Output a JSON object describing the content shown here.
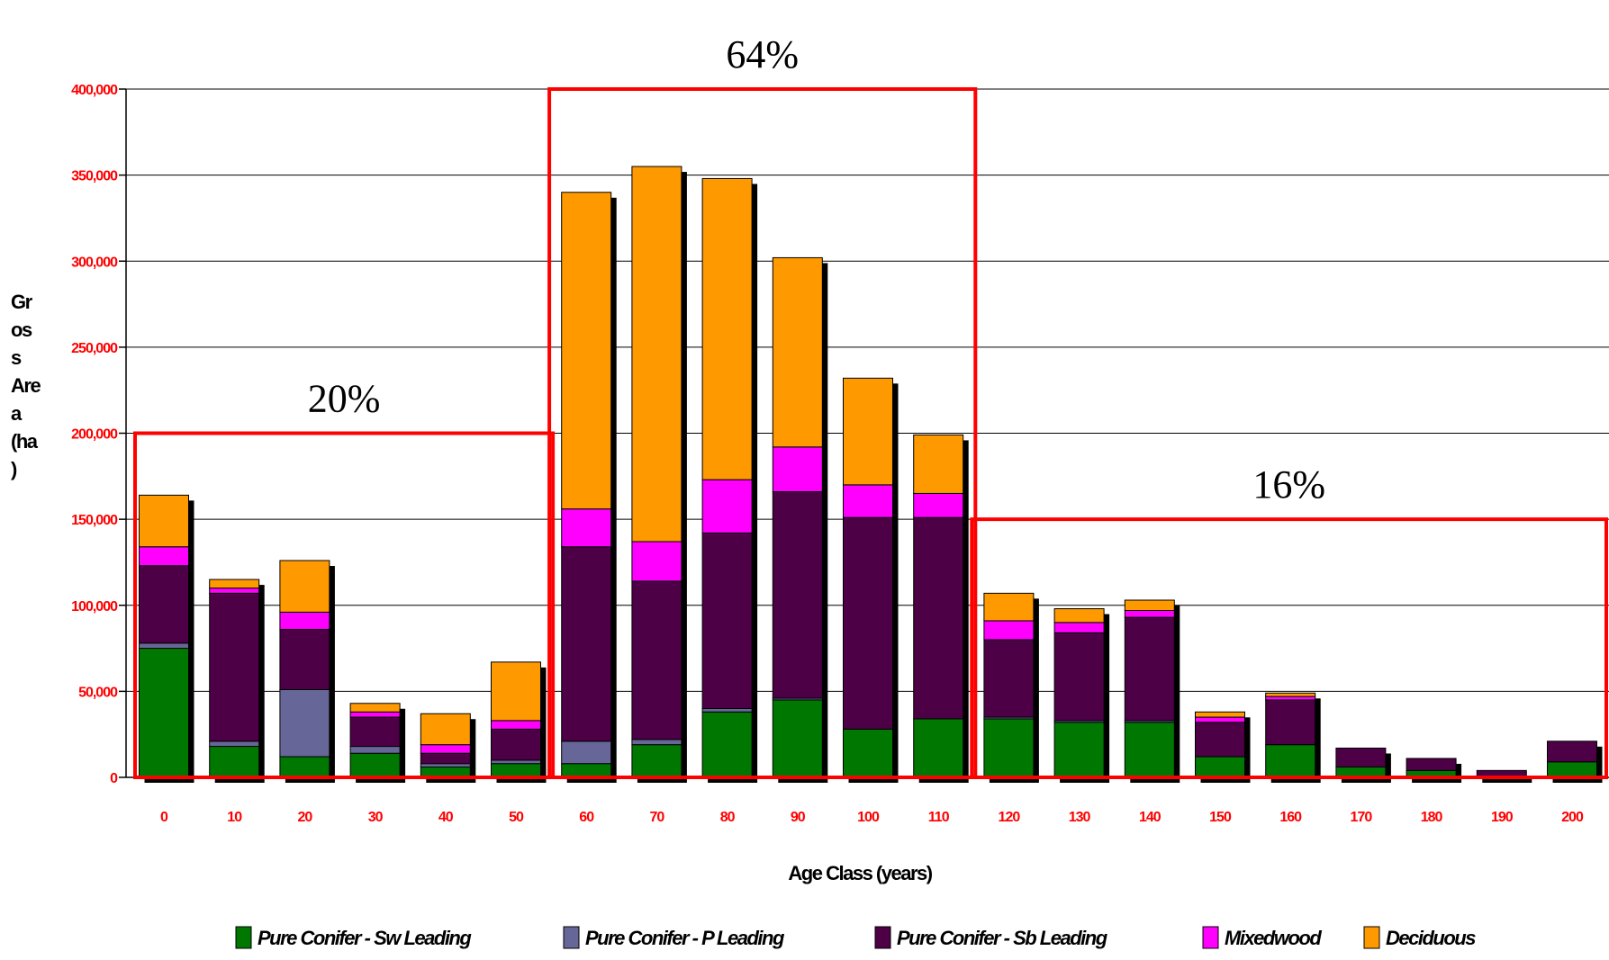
{
  "chart_data": {
    "type": "bar",
    "stacked": true,
    "title": "",
    "xlabel": "Age Class (years)",
    "ylabel_lines": [
      "Gr",
      "os",
      "s",
      "Are",
      "a",
      "(ha",
      ")"
    ],
    "ylim": [
      0,
      400000
    ],
    "yticks": [
      "0",
      "50,000",
      "100,000",
      "150,000",
      "200,000",
      "250,000",
      "300,000",
      "350,000",
      "400,000"
    ],
    "categories": [
      "0",
      "10",
      "20",
      "30",
      "40",
      "50",
      "60",
      "70",
      "80",
      "90",
      "100",
      "110",
      "120",
      "130",
      "140",
      "150",
      "160",
      "170",
      "180",
      "190",
      "200"
    ],
    "grid": true,
    "legend_position": "bottom",
    "series": [
      {
        "name": "Pure Conifer - Sw Leading",
        "color": "#007700",
        "values": [
          75000,
          18000,
          12000,
          14000,
          6000,
          8000,
          8000,
          19000,
          38000,
          45000,
          28000,
          34000,
          34000,
          32000,
          32000,
          12000,
          19000,
          6000,
          4000,
          0,
          9000
        ]
      },
      {
        "name": "Pure Conifer - P Leading",
        "color": "#666699",
        "values": [
          3000,
          3000,
          39000,
          4000,
          2000,
          2000,
          13000,
          3000,
          2000,
          1000,
          0,
          0,
          1000,
          1000,
          1000,
          0,
          0,
          0,
          0,
          0,
          0
        ]
      },
      {
        "name": "Pure Conifer - Sb Leading",
        "color": "#4d0046",
        "values": [
          45000,
          86000,
          35000,
          17000,
          6000,
          18000,
          113000,
          92000,
          102000,
          120000,
          123000,
          117000,
          45000,
          51000,
          60000,
          20000,
          26000,
          11000,
          7000,
          4000,
          12000
        ]
      },
      {
        "name": "Mixedwood",
        "color": "#ff00ff",
        "values": [
          11000,
          3000,
          10000,
          3000,
          5000,
          5000,
          22000,
          23000,
          31000,
          26000,
          19000,
          14000,
          11000,
          6000,
          4000,
          3000,
          2000,
          0,
          0,
          0,
          0
        ]
      },
      {
        "name": "Deciduous",
        "color": "#ff9900",
        "values": [
          30000,
          5000,
          30000,
          5000,
          18000,
          34000,
          184000,
          218000,
          175000,
          110000,
          62000,
          34000,
          16000,
          8000,
          6000,
          3000,
          2000,
          0,
          0,
          0,
          0
        ]
      }
    ],
    "annotations": [
      {
        "text": "20%",
        "from": "0",
        "to": "50",
        "box_top": 200000
      },
      {
        "text": "64%",
        "from": "60",
        "to": "110",
        "box_top": 400000
      },
      {
        "text": "16%",
        "from": "120",
        "to": "200",
        "box_top": 150000
      }
    ]
  }
}
